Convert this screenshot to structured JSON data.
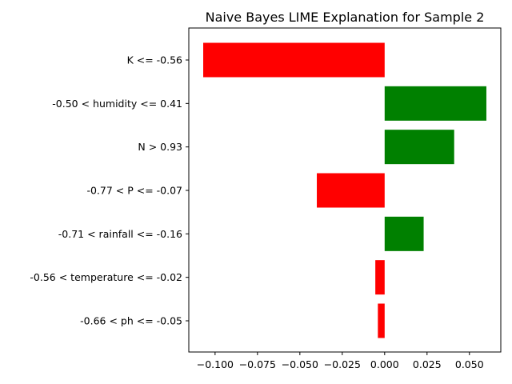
{
  "chart_data": {
    "type": "bar",
    "orientation": "horizontal",
    "title": "Naive Bayes LIME Explanation for Sample 2",
    "xlabel": "",
    "ylabel": "",
    "grid": false,
    "categories": [
      "K <= -0.56",
      "-0.50 < humidity <= 0.41",
      "N > 0.93",
      "-0.77 < P <= -0.07",
      "-0.71 < rainfall <= -0.16",
      "-0.56 < temperature <= -0.02",
      "-0.66 < ph <= -0.05"
    ],
    "values": [
      -0.107,
      0.06,
      0.041,
      -0.04,
      0.023,
      -0.0055,
      -0.004
    ],
    "bar_colors": [
      "#ff0000",
      "#008000",
      "#008000",
      "#ff0000",
      "#008000",
      "#ff0000",
      "#ff0000"
    ],
    "xlim": [
      -0.1155,
      0.0685
    ],
    "xticks": [
      -0.1,
      -0.075,
      -0.05,
      -0.025,
      0.0,
      0.025,
      0.05
    ],
    "xtick_labels": [
      "−0.100",
      "−0.075",
      "−0.050",
      "−0.025",
      "0.000",
      "0.025",
      "0.050"
    ]
  }
}
